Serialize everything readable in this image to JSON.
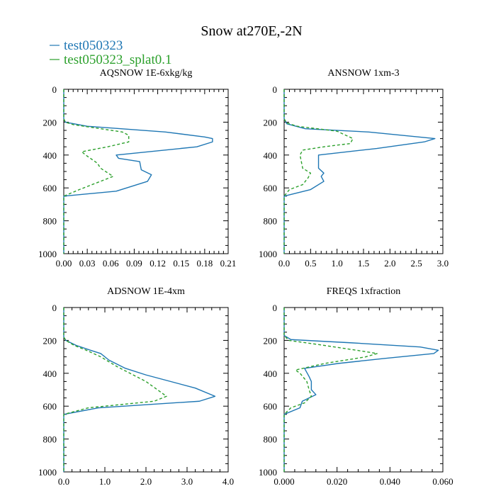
{
  "figure": {
    "title": "Snow at270E,-2N",
    "legend": [
      {
        "name": "test050323",
        "color": "#1f77b4",
        "style": "solid"
      },
      {
        "name": "test050323_splat0.1",
        "color": "#2ca02c",
        "style": "dashed"
      }
    ]
  },
  "chart_data": [
    {
      "type": "line",
      "title": "AQSNOW 1E-6xkg/kg",
      "xlim": [
        0,
        0.21
      ],
      "ylim": [
        1000,
        0
      ],
      "y_inverted": true,
      "xticks": [
        "0.00",
        "0.03",
        "0.06",
        "0.09",
        "0.12",
        "0.15",
        "0.18",
        "0.21"
      ],
      "yticks": [
        "0",
        "200",
        "400",
        "600",
        "800",
        "1000"
      ],
      "series": [
        {
          "name": "test050323",
          "points": [
            [
              0,
              0
            ],
            [
              0,
              150
            ],
            [
              0,
              180
            ],
            [
              0.002,
              200
            ],
            [
              0.03,
              225
            ],
            [
              0.13,
              260
            ],
            [
              0.18,
              290
            ],
            [
              0.19,
              300
            ],
            [
              0.19,
              320
            ],
            [
              0.17,
              350
            ],
            [
              0.067,
              400
            ],
            [
              0.07,
              420
            ],
            [
              0.097,
              440
            ],
            [
              0.099,
              490
            ],
            [
              0.112,
              520
            ],
            [
              0.107,
              560
            ],
            [
              0.067,
              620
            ],
            [
              0,
              650
            ],
            [
              0,
              1000
            ]
          ]
        },
        {
          "name": "test050323_splat0.1",
          "points": [
            [
              0,
              0
            ],
            [
              0,
              150
            ],
            [
              0,
              180
            ],
            [
              0.002,
              200
            ],
            [
              0.012,
              215
            ],
            [
              0.075,
              260
            ],
            [
              0.083,
              280
            ],
            [
              0.083,
              320
            ],
            [
              0.056,
              350
            ],
            [
              0.023,
              380
            ],
            [
              0.028,
              400
            ],
            [
              0.043,
              450
            ],
            [
              0.047,
              480
            ],
            [
              0.063,
              530
            ],
            [
              0.02,
              610
            ],
            [
              0,
              650
            ],
            [
              0,
              1000
            ]
          ]
        }
      ]
    },
    {
      "type": "line",
      "title": "ANSNOW 1xm-3",
      "xlim": [
        0,
        3.0
      ],
      "ylim": [
        1000,
        0
      ],
      "y_inverted": true,
      "xticks": [
        "0.0",
        "0.5",
        "1.0",
        "1.5",
        "2.0",
        "2.5",
        "3.0"
      ],
      "yticks": [
        "0",
        "200",
        "400",
        "600",
        "800",
        "1000"
      ],
      "series": [
        {
          "name": "test050323",
          "points": [
            [
              0,
              0
            ],
            [
              0,
              180
            ],
            [
              0.05,
              210
            ],
            [
              0.4,
              240
            ],
            [
              1.6,
              260
            ],
            [
              2.85,
              300
            ],
            [
              2.65,
              320
            ],
            [
              1.75,
              360
            ],
            [
              0.65,
              400
            ],
            [
              0.65,
              480
            ],
            [
              0.75,
              510
            ],
            [
              0.7,
              530
            ],
            [
              0.75,
              560
            ],
            [
              0.5,
              610
            ],
            [
              0,
              650
            ],
            [
              0,
              1000
            ]
          ]
        },
        {
          "name": "test050323_splat0.1",
          "points": [
            [
              0,
              0
            ],
            [
              0,
              180
            ],
            [
              0.05,
              205
            ],
            [
              0.25,
              225
            ],
            [
              1.0,
              255
            ],
            [
              1.3,
              300
            ],
            [
              1.25,
              330
            ],
            [
              0.75,
              350
            ],
            [
              0.35,
              370
            ],
            [
              0.3,
              400
            ],
            [
              0.35,
              480
            ],
            [
              0.5,
              510
            ],
            [
              0.45,
              540
            ],
            [
              0.35,
              580
            ],
            [
              0.1,
              610
            ],
            [
              0,
              650
            ],
            [
              0,
              1000
            ]
          ]
        }
      ]
    },
    {
      "type": "line",
      "title": "ADSNOW 1E-4xm",
      "xlim": [
        0,
        4.0
      ],
      "ylim": [
        1000,
        0
      ],
      "y_inverted": true,
      "xticks": [
        "0.0",
        "1.0",
        "2.0",
        "3.0",
        "4.0"
      ],
      "yticks": [
        "0",
        "200",
        "400",
        "600",
        "800",
        "1000"
      ],
      "series": [
        {
          "name": "test050323",
          "points": [
            [
              0,
              0
            ],
            [
              0,
              180
            ],
            [
              0.05,
              200
            ],
            [
              0.3,
              230
            ],
            [
              0.65,
              260
            ],
            [
              0.9,
              280
            ],
            [
              1.1,
              320
            ],
            [
              1.5,
              370
            ],
            [
              2.0,
              410
            ],
            [
              3.2,
              490
            ],
            [
              3.68,
              540
            ],
            [
              3.3,
              570
            ],
            [
              0.85,
              610
            ],
            [
              0,
              650
            ],
            [
              0,
              1000
            ]
          ]
        },
        {
          "name": "test050323_splat0.1",
          "points": [
            [
              0,
              0
            ],
            [
              0,
              180
            ],
            [
              0.05,
              200
            ],
            [
              0.25,
              230
            ],
            [
              0.55,
              260
            ],
            [
              0.9,
              300
            ],
            [
              1.3,
              360
            ],
            [
              2.0,
              450
            ],
            [
              2.5,
              540
            ],
            [
              2.2,
              570
            ],
            [
              0.6,
              610
            ],
            [
              0,
              650
            ],
            [
              0,
              1000
            ]
          ]
        }
      ]
    },
    {
      "type": "line",
      "title": "FREQS 1xfraction",
      "xlim": [
        0,
        0.07
      ],
      "ylim": [
        1000,
        0
      ],
      "y_inverted": true,
      "xticks": [
        "0.000",
        "0.020",
        "0.040",
        "0.060"
      ],
      "yticks": [
        "0",
        "200",
        "400",
        "600",
        "800",
        "1000"
      ],
      "series": [
        {
          "name": "test050323",
          "points": [
            [
              0,
              0
            ],
            [
              0,
              170
            ],
            [
              0.003,
              195
            ],
            [
              0.03,
              215
            ],
            [
              0.06,
              240
            ],
            [
              0.068,
              260
            ],
            [
              0.066,
              280
            ],
            [
              0.044,
              310
            ],
            [
              0.024,
              340
            ],
            [
              0.009,
              370
            ],
            [
              0.011,
              420
            ],
            [
              0.012,
              450
            ],
            [
              0.012,
              500
            ],
            [
              0.014,
              530
            ],
            [
              0.008,
              570
            ],
            [
              0.007,
              610
            ],
            [
              0,
              650
            ],
            [
              0,
              1000
            ]
          ]
        },
        {
          "name": "test050323_splat0.1",
          "points": [
            [
              0,
              0
            ],
            [
              0,
              170
            ],
            [
              0.002,
              200
            ],
            [
              0.015,
              225
            ],
            [
              0.032,
              260
            ],
            [
              0.041,
              280
            ],
            [
              0.036,
              300
            ],
            [
              0.018,
              340
            ],
            [
              0.005,
              380
            ],
            [
              0.007,
              400
            ],
            [
              0.01,
              450
            ],
            [
              0.011,
              500
            ],
            [
              0.012,
              540
            ],
            [
              0.009,
              580
            ],
            [
              0.003,
              610
            ],
            [
              0,
              650
            ],
            [
              0,
              1000
            ]
          ]
        }
      ]
    }
  ]
}
